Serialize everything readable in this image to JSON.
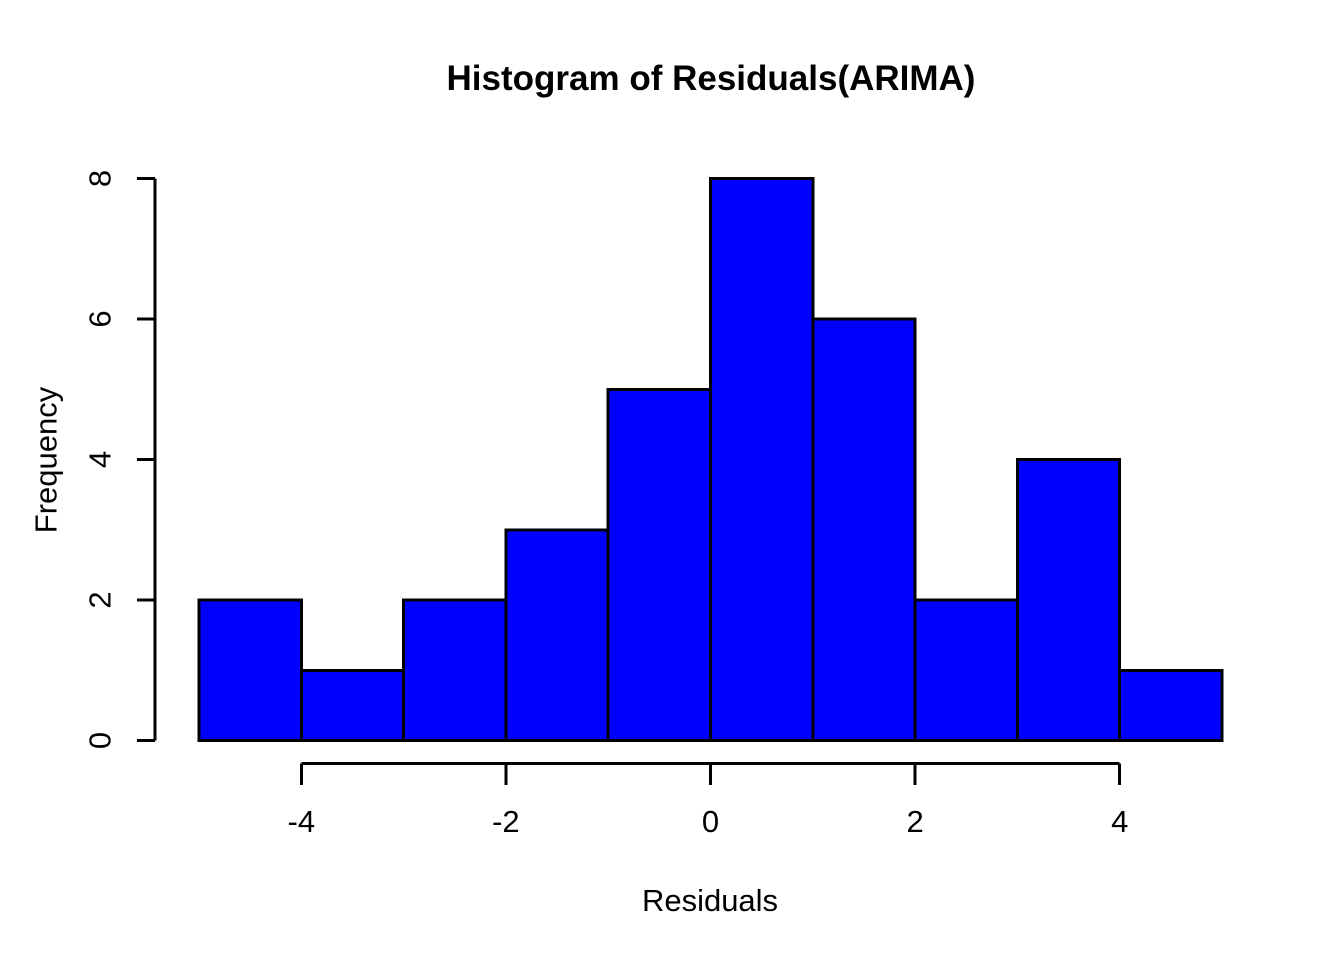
{
  "chart_data": {
    "type": "bar",
    "subtype": "histogram",
    "title": "Histogram of Residuals(ARIMA)",
    "xlabel": "Residuals",
    "ylabel": "Frequency",
    "bin_edges": [
      -5,
      -4,
      -3,
      -2,
      -1,
      0,
      1,
      2,
      3,
      4,
      5
    ],
    "counts": [
      2,
      1,
      2,
      3,
      5,
      8,
      6,
      2,
      4,
      1
    ],
    "xticks": [
      -4,
      -2,
      0,
      2,
      4
    ],
    "xtick_labels": [
      "-4",
      "-2",
      "0",
      "2",
      "4"
    ],
    "yticks": [
      0,
      2,
      4,
      6,
      8
    ],
    "ytick_labels": [
      "0",
      "2",
      "4",
      "6",
      "8"
    ],
    "xlim": [
      -5,
      5
    ],
    "ylim": [
      0,
      8
    ],
    "grid": false,
    "legend_position": "none",
    "colors": {
      "bar_fill": "#0000FF",
      "bar_stroke": "#000000",
      "axis": "#000000",
      "text": "#000000",
      "background": "#FFFFFF"
    }
  }
}
